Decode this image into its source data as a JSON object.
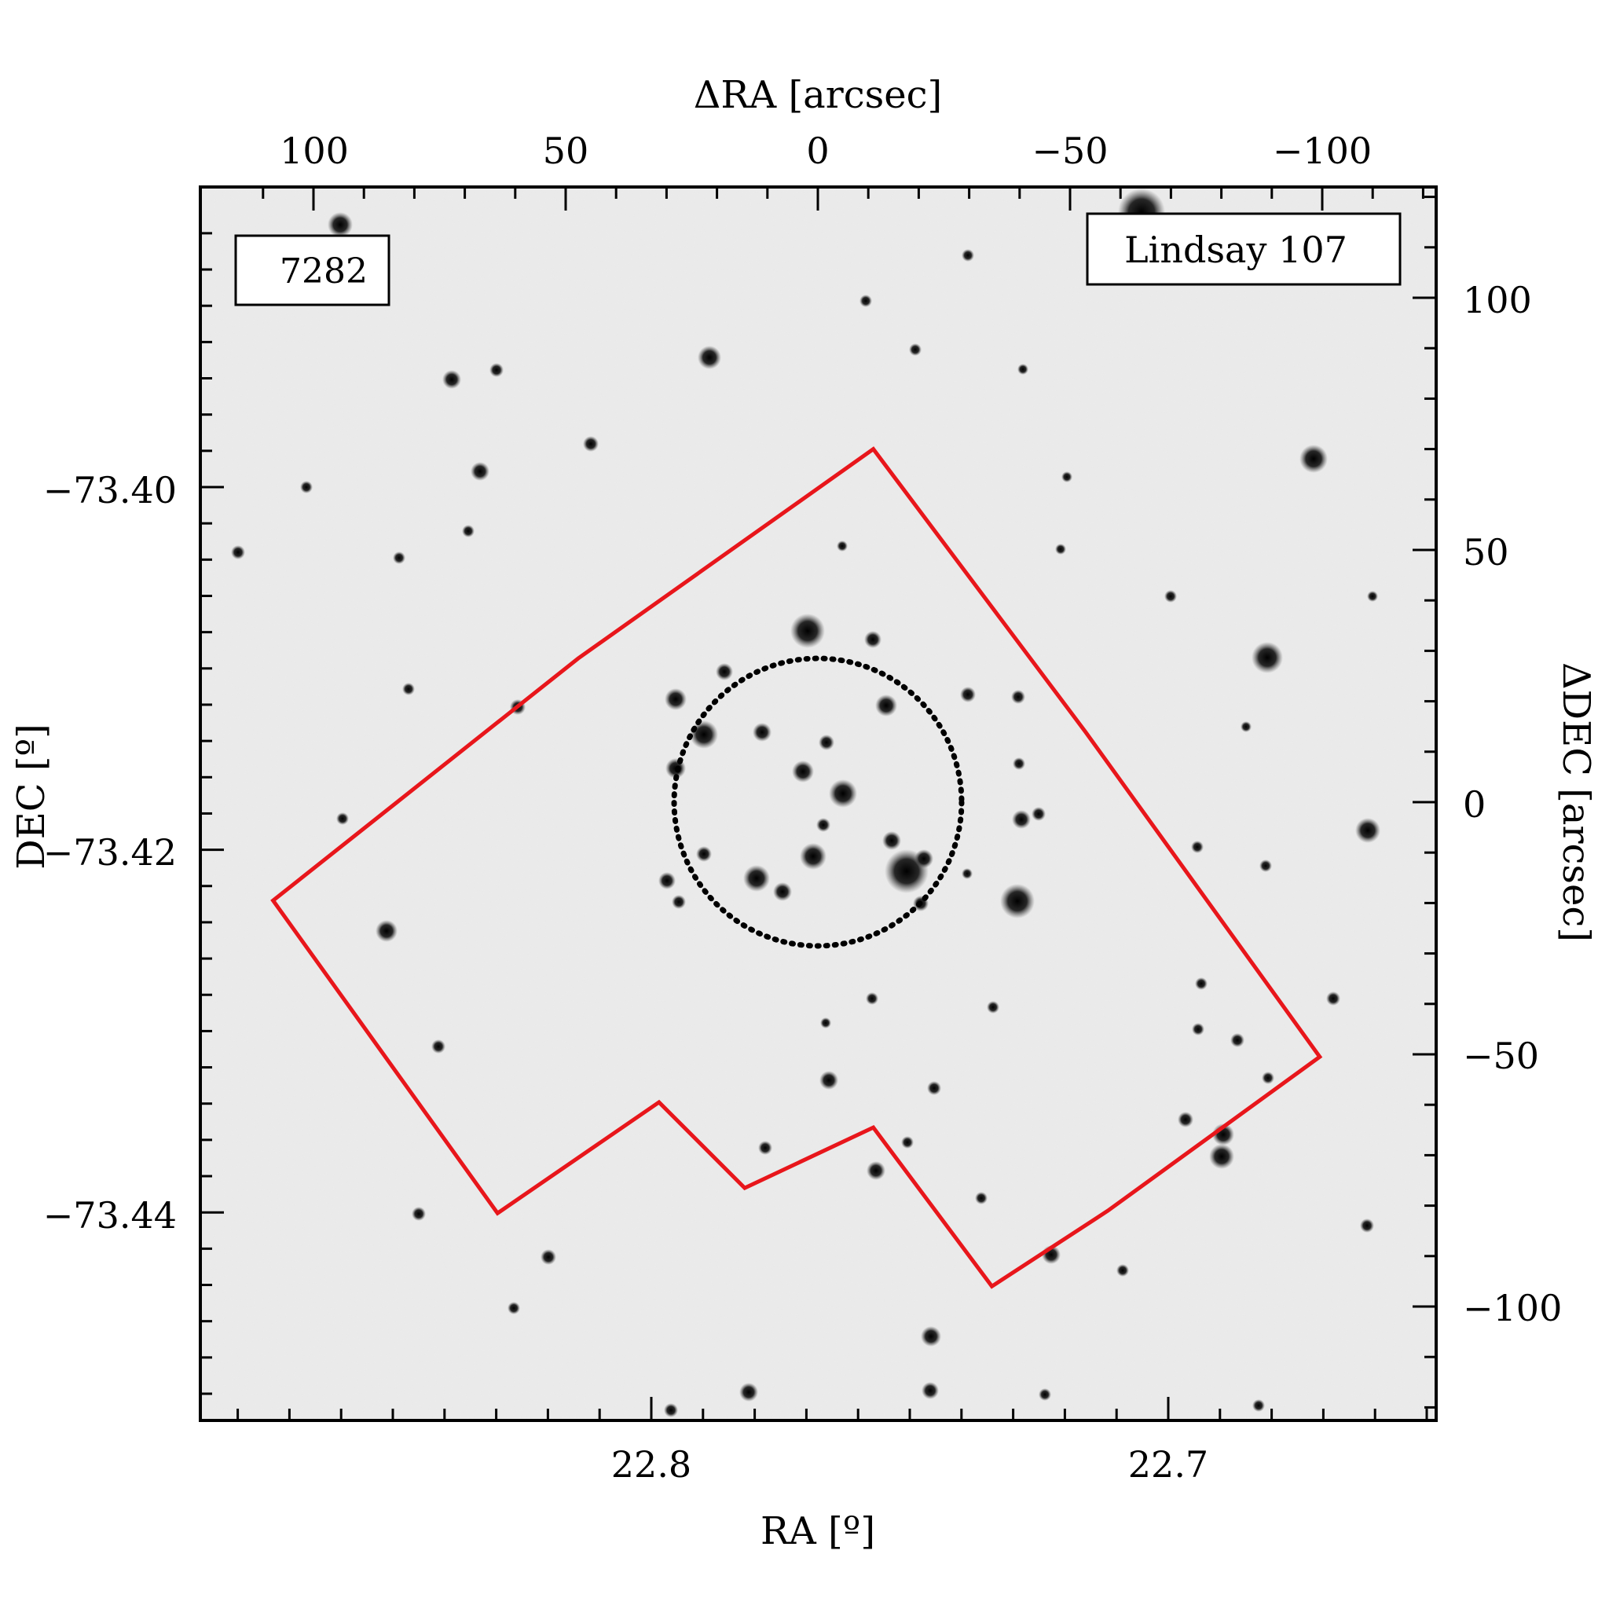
{
  "figure": {
    "top_axis": {
      "label": "ΔRA [arcsec]",
      "ticks": [
        100,
        50,
        0,
        -50,
        -100
      ],
      "tick_labels": [
        "100",
        "50",
        "0",
        "−50",
        "−100"
      ],
      "range": [
        118.5,
        -121.5
      ]
    },
    "bottom_axis": {
      "label": "RA [º]",
      "ticks": [
        22.8,
        22.7
      ],
      "tick_labels": [
        "22.8",
        "22.7"
      ],
      "range": [
        22.8877,
        22.6488
      ]
    },
    "left_axis": {
      "label": "DEC [º]",
      "ticks": [
        -73.4,
        -73.42,
        -73.44
      ],
      "tick_labels": [
        "−73.40",
        "−73.42",
        "−73.44"
      ],
      "range": [
        -73.4465,
        -73.3889
      ]
    },
    "right_axis": {
      "label": "ΔDEC [arcsec]",
      "ticks": [
        100,
        50,
        0,
        -50,
        -100
      ],
      "tick_labels": [
        "100",
        "50",
        "0",
        "−50",
        "−100"
      ],
      "range": [
        -121,
        123
      ]
    },
    "id_label": {
      "text": "7282",
      "color": "#e8161b"
    },
    "name_label": {
      "text": "Lindsay 107"
    },
    "footprint": {
      "color": "#e8161b",
      "vertices_arcsec": [
        [
          -11.0,
          70.0
        ],
        [
          -53.0,
          14.0
        ],
        [
          -99.5,
          -50.5
        ],
        [
          -57.5,
          -81.0
        ],
        [
          -34.5,
          -96.0
        ],
        [
          -11.0,
          -64.5
        ],
        [
          14.5,
          -76.5
        ],
        [
          31.5,
          -59.5
        ],
        [
          63.5,
          -81.5
        ],
        [
          108.0,
          -19.5
        ],
        [
          47.5,
          28.5
        ]
      ]
    },
    "cluster_circle": {
      "center_arcsec": [
        0,
        0
      ],
      "radius_arcsec": 28.5
    }
  }
}
